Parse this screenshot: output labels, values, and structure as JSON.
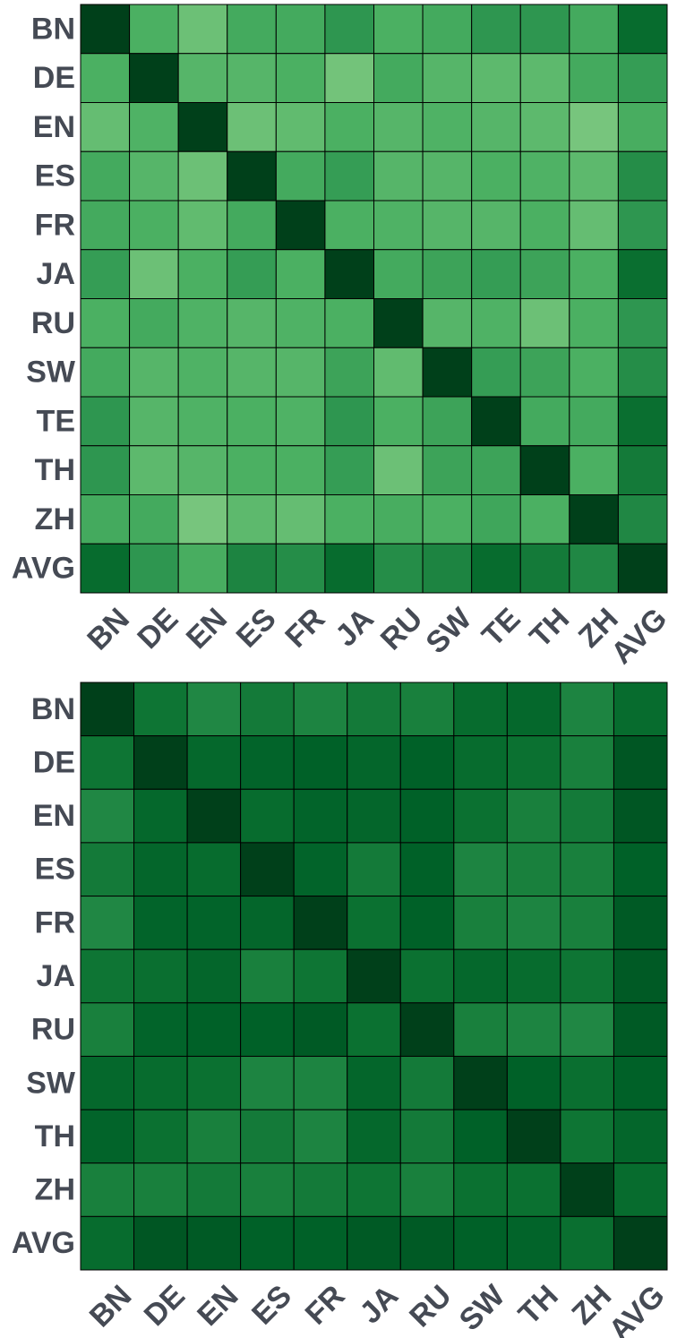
{
  "chart_data": [
    {
      "type": "heatmap",
      "x": [
        "BN",
        "DE",
        "EN",
        "ES",
        "FR",
        "JA",
        "RU",
        "SW",
        "TE",
        "TH",
        "ZH",
        "AVG"
      ],
      "y": [
        "BN",
        "DE",
        "EN",
        "ES",
        "FR",
        "JA",
        "RU",
        "SW",
        "TE",
        "TH",
        "ZH",
        "AVG"
      ],
      "zlim": [
        0,
        1
      ],
      "colorscale": [
        [
          0,
          "#8dd08a"
        ],
        [
          0.3,
          "#4bb062"
        ],
        [
          0.5,
          "#2e9650"
        ],
        [
          0.7,
          "#0b7131"
        ],
        [
          0.85,
          "#006128"
        ],
        [
          1,
          "#00401a"
        ]
      ],
      "values": [
        [
          1,
          0.3,
          0.15,
          0.35,
          0.35,
          0.5,
          0.3,
          0.35,
          0.5,
          0.5,
          0.35,
          0.75
        ],
        [
          0.3,
          1,
          0.25,
          0.25,
          0.3,
          0.12,
          0.35,
          0.25,
          0.22,
          0.22,
          0.35,
          0.45
        ],
        [
          0.18,
          0.28,
          1,
          0.15,
          0.2,
          0.3,
          0.25,
          0.28,
          0.25,
          0.22,
          0.1,
          0.32
        ],
        [
          0.35,
          0.25,
          0.15,
          1,
          0.35,
          0.45,
          0.25,
          0.25,
          0.3,
          0.28,
          0.22,
          0.55
        ],
        [
          0.35,
          0.3,
          0.2,
          0.35,
          1,
          0.3,
          0.28,
          0.25,
          0.25,
          0.3,
          0.18,
          0.5
        ],
        [
          0.45,
          0.15,
          0.3,
          0.45,
          0.3,
          1,
          0.35,
          0.4,
          0.45,
          0.4,
          0.3,
          0.72
        ],
        [
          0.3,
          0.35,
          0.28,
          0.25,
          0.28,
          0.3,
          1,
          0.25,
          0.28,
          0.15,
          0.3,
          0.5
        ],
        [
          0.35,
          0.25,
          0.28,
          0.25,
          0.25,
          0.4,
          0.2,
          1,
          0.45,
          0.4,
          0.3,
          0.55
        ],
        [
          0.5,
          0.25,
          0.28,
          0.3,
          0.28,
          0.5,
          0.3,
          0.4,
          1,
          0.35,
          0.35,
          0.72
        ],
        [
          0.5,
          0.22,
          0.25,
          0.3,
          0.3,
          0.45,
          0.15,
          0.4,
          0.4,
          1,
          0.3,
          0.65
        ],
        [
          0.35,
          0.35,
          0.1,
          0.22,
          0.18,
          0.3,
          0.32,
          0.3,
          0.38,
          0.3,
          1,
          0.58
        ],
        [
          0.75,
          0.5,
          0.32,
          0.6,
          0.55,
          0.75,
          0.55,
          0.6,
          0.75,
          0.65,
          0.58,
          1
        ]
      ]
    },
    {
      "type": "heatmap",
      "x": [
        "BN",
        "DE",
        "EN",
        "ES",
        "FR",
        "JA",
        "RU",
        "SW",
        "TH",
        "ZH",
        "AVG"
      ],
      "y": [
        "BN",
        "DE",
        "EN",
        "ES",
        "FR",
        "JA",
        "RU",
        "SW",
        "TH",
        "ZH",
        "AVG"
      ],
      "zlim": [
        0,
        1
      ],
      "colorscale": [
        [
          0,
          "#8dd08a"
        ],
        [
          0.3,
          "#4bb062"
        ],
        [
          0.5,
          "#2e9650"
        ],
        [
          0.7,
          "#0b7131"
        ],
        [
          0.85,
          "#006128"
        ],
        [
          1,
          "#00401a"
        ]
      ],
      "values": [
        [
          1,
          0.68,
          0.58,
          0.65,
          0.6,
          0.65,
          0.62,
          0.75,
          0.78,
          0.6,
          0.75
        ],
        [
          0.68,
          1,
          0.78,
          0.82,
          0.85,
          0.8,
          0.85,
          0.75,
          0.7,
          0.62,
          0.9
        ],
        [
          0.58,
          0.78,
          1,
          0.75,
          0.82,
          0.8,
          0.85,
          0.7,
          0.62,
          0.65,
          0.9
        ],
        [
          0.65,
          0.8,
          0.75,
          1,
          0.82,
          0.65,
          0.85,
          0.6,
          0.62,
          0.62,
          0.85
        ],
        [
          0.58,
          0.82,
          0.82,
          0.8,
          1,
          0.7,
          0.85,
          0.62,
          0.6,
          0.62,
          0.88
        ],
        [
          0.68,
          0.72,
          0.8,
          0.62,
          0.68,
          1,
          0.7,
          0.78,
          0.75,
          0.68,
          0.88
        ],
        [
          0.62,
          0.82,
          0.85,
          0.85,
          0.88,
          0.7,
          1,
          0.62,
          0.6,
          0.58,
          0.88
        ],
        [
          0.78,
          0.75,
          0.7,
          0.6,
          0.6,
          0.8,
          0.65,
          1,
          0.85,
          0.72,
          0.85
        ],
        [
          0.82,
          0.7,
          0.62,
          0.65,
          0.6,
          0.78,
          0.65,
          0.85,
          1,
          0.68,
          0.8
        ],
        [
          0.62,
          0.62,
          0.65,
          0.62,
          0.65,
          0.68,
          0.62,
          0.7,
          0.7,
          1,
          0.75
        ],
        [
          0.75,
          0.9,
          0.88,
          0.85,
          0.85,
          0.88,
          0.88,
          0.85,
          0.82,
          0.72,
          1
        ]
      ]
    }
  ]
}
